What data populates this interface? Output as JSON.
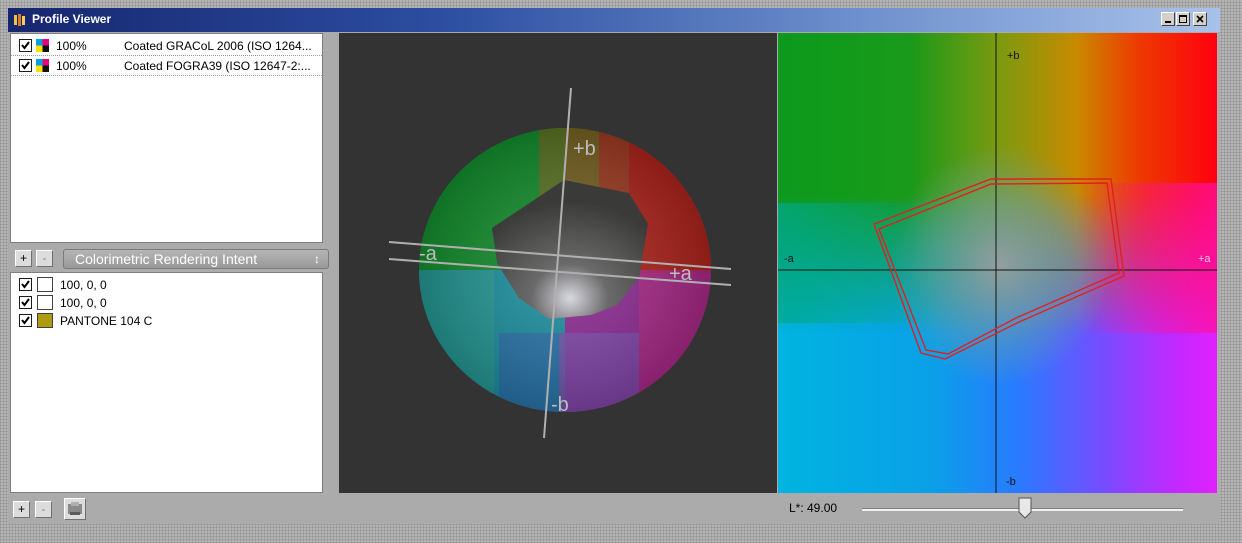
{
  "window": {
    "title": "Profile Viewer",
    "icons": {
      "app": "profile-viewer-app-icon",
      "minimize": "minimize-icon",
      "maximize": "maximize-icon",
      "close": "close-icon"
    }
  },
  "profiles": [
    {
      "checked": true,
      "percent": "100%",
      "name": "Coated GRACoL 2006 (ISO 1264..."
    },
    {
      "checked": true,
      "percent": "100%",
      "name": "Coated FOGRA39 (ISO 12647-2:..."
    }
  ],
  "samples_toolbar": {
    "add_label": "+",
    "remove_label": "-",
    "intent": "Colorimetric Rendering Intent",
    "intent_arrows": "↕"
  },
  "samples": [
    {
      "checked": true,
      "label": "100, 0, 0",
      "color": "#ffffff"
    },
    {
      "checked": true,
      "label": "100, 0, 0",
      "color": "#ffffff"
    },
    {
      "checked": true,
      "label": "PANTONE 104 C",
      "color": "#b09a10"
    }
  ],
  "bottom_bar": {
    "add_label": "+",
    "remove_label": "-",
    "lstar_label": "L*: 49.00",
    "lstar_value": 49.0
  },
  "view3d": {
    "axis_labels": {
      "plus_b": "+b",
      "minus_b": "-b",
      "plus_a": "+a",
      "minus_a": "-a"
    }
  },
  "view2d": {
    "axis_labels": {
      "plus_b": "+b",
      "minus_b": "-b",
      "plus_a": "+a",
      "minus_a": "-a"
    }
  },
  "colors": {
    "gamut_outline": "#e02020",
    "panel_bg": "#333333",
    "titlebar_start": "#16266e",
    "titlebar_end": "#a8c2ea"
  }
}
